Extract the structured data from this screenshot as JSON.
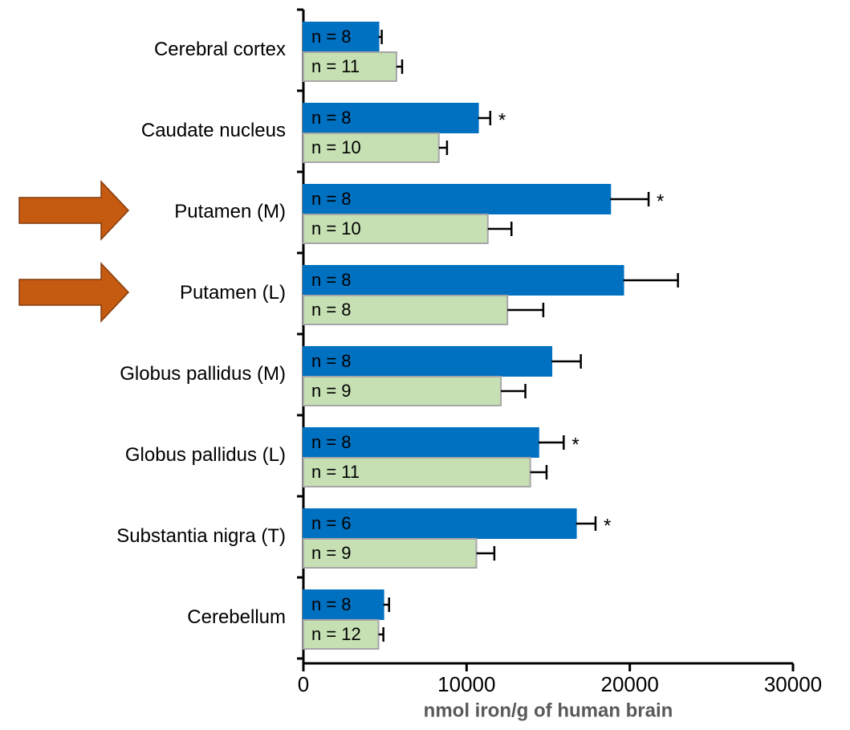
{
  "chart_data": {
    "type": "hbar",
    "x_label": "nmol iron/g of human brain",
    "categories": [
      "Cerebral cortex",
      "Caudate nucleus",
      "Putamen (M)",
      "Putamen (L)",
      "Globus pallidus (M)",
      "Globus pallidus (L)",
      "Substantia nigra (T)",
      "Cerebellum"
    ],
    "series": [
      {
        "color": "#0070c0",
        "border": "#0070c0",
        "label_color": "#ffffff",
        "values": [
          4600,
          10700,
          18800,
          19600,
          15200,
          14400,
          16700,
          4900
        ],
        "errors": [
          200,
          750,
          2350,
          3350,
          1800,
          1550,
          1200,
          350
        ],
        "n_labels": [
          "n = 8",
          "n = 8",
          "n = 8",
          "n = 8",
          "n = 8",
          "n = 8",
          "n = 6",
          "n = 8"
        ],
        "annotations": [
          null,
          "*",
          "*",
          null,
          null,
          "*",
          "*",
          null
        ]
      },
      {
        "color": "#c6e0b4",
        "border": "#a6a6a6",
        "label_color": "#404040",
        "values": [
          5700,
          8300,
          11300,
          12500,
          12100,
          13900,
          10600,
          4600
        ],
        "errors": [
          350,
          500,
          1450,
          2200,
          1500,
          1000,
          1100,
          300
        ],
        "n_labels": [
          "n = 11",
          "n = 10",
          "n = 10",
          "n = 8",
          "n = 9",
          "n = 11",
          "n = 9",
          "n = 12"
        ],
        "annotations": [
          null,
          null,
          null,
          null,
          null,
          null,
          null,
          null
        ]
      }
    ],
    "xlim": [
      0,
      30000
    ],
    "xticks": [
      0,
      10000,
      20000,
      30000
    ]
  }
}
